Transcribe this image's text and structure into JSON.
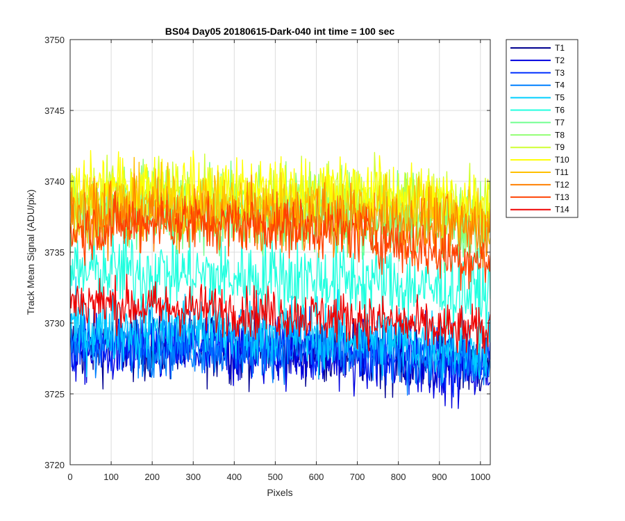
{
  "chart_data": {
    "type": "line",
    "title": "BS04 Day05 20180615-Dark-040 int time = 100 sec",
    "xlabel": "Pixels",
    "ylabel": "Track Mean Signal (ADU/pix)",
    "xlim": [
      0,
      1024
    ],
    "ylim": [
      3720,
      3750
    ],
    "xticks": [
      0,
      100,
      200,
      300,
      400,
      500,
      600,
      700,
      800,
      900,
      1000
    ],
    "yticks": [
      3720,
      3725,
      3730,
      3735,
      3740,
      3745,
      3750
    ],
    "grid": true,
    "legend_position": "outside-top-right",
    "noise_note": "Each track is a noisy per-pixel trace; values below give the approximate mean level and the typical noise spread (std) read from the plot.",
    "series": [
      {
        "name": "T1",
        "color": "#00008f",
        "mean": [
          3728.3,
          3728.5,
          3728.3,
          3728.4,
          3728.2,
          3728.3,
          3728.0,
          3727.9,
          3727.6,
          3727.2,
          3727.0
        ],
        "noise_std": 1.2
      },
      {
        "name": "T2",
        "color": "#0000df",
        "mean": [
          3728.0,
          3728.2,
          3728.0,
          3728.1,
          3727.9,
          3728.0,
          3727.7,
          3727.6,
          3727.3,
          3727.0,
          3726.8
        ],
        "noise_std": 1.2
      },
      {
        "name": "T3",
        "color": "#0030ff",
        "mean": [
          3728.6,
          3728.8,
          3728.6,
          3728.7,
          3728.5,
          3728.6,
          3728.3,
          3728.2,
          3727.9,
          3727.6,
          3727.4
        ],
        "noise_std": 1.1
      },
      {
        "name": "T4",
        "color": "#0080ff",
        "mean": [
          3728.4,
          3728.6,
          3728.4,
          3728.5,
          3728.3,
          3728.4,
          3728.1,
          3728.0,
          3727.7,
          3727.4,
          3727.2
        ],
        "noise_std": 1.1
      },
      {
        "name": "T5",
        "color": "#00cfff",
        "mean": [
          3729.6,
          3729.8,
          3729.6,
          3729.7,
          3729.5,
          3729.6,
          3729.3,
          3729.2,
          3728.9,
          3728.6,
          3728.4
        ],
        "noise_std": 1.3
      },
      {
        "name": "T6",
        "color": "#20ffdf",
        "mean": [
          3733.5,
          3733.7,
          3733.6,
          3733.4,
          3733.2,
          3733.3,
          3733.1,
          3733.0,
          3732.7,
          3732.3,
          3732.0
        ],
        "noise_std": 1.4
      },
      {
        "name": "T7",
        "color": "#70ff8f",
        "mean": [
          3737.6,
          3737.8,
          3737.9,
          3737.7,
          3737.6,
          3737.5,
          3737.6,
          3737.5,
          3737.3,
          3737.0,
          3736.8
        ],
        "noise_std": 1.3
      },
      {
        "name": "T8",
        "color": "#8fff70",
        "mean": [
          3738.3,
          3738.5,
          3738.6,
          3738.4,
          3738.3,
          3738.2,
          3738.3,
          3738.2,
          3738.0,
          3737.7,
          3737.5
        ],
        "noise_std": 1.3
      },
      {
        "name": "T9",
        "color": "#cfff30",
        "mean": [
          3739.0,
          3739.2,
          3739.3,
          3739.1,
          3739.0,
          3738.9,
          3739.0,
          3738.9,
          3738.7,
          3738.4,
          3738.2
        ],
        "noise_std": 1.2
      },
      {
        "name": "T10",
        "color": "#ffff00",
        "mean": [
          3739.3,
          3739.5,
          3739.6,
          3739.4,
          3739.3,
          3739.2,
          3739.3,
          3739.2,
          3739.0,
          3738.7,
          3738.5
        ],
        "noise_std": 1.2
      },
      {
        "name": "T11",
        "color": "#ffbf00",
        "mean": [
          3738.2,
          3738.4,
          3738.5,
          3738.3,
          3738.2,
          3738.1,
          3738.2,
          3738.1,
          3737.9,
          3737.6,
          3737.4
        ],
        "noise_std": 1.2
      },
      {
        "name": "T12",
        "color": "#ff8000",
        "mean": [
          3737.3,
          3737.5,
          3737.6,
          3737.4,
          3737.3,
          3737.2,
          3737.3,
          3737.2,
          3737.0,
          3736.7,
          3736.5
        ],
        "noise_std": 1.2
      },
      {
        "name": "T13",
        "color": "#ff4000",
        "mean": [
          3736.4,
          3736.8,
          3737.2,
          3737.1,
          3737.0,
          3736.9,
          3736.7,
          3736.3,
          3735.6,
          3734.9,
          3734.3
        ],
        "noise_std": 1.0
      },
      {
        "name": "T14",
        "color": "#ef0000",
        "mean": [
          3731.6,
          3731.4,
          3731.1,
          3731.0,
          3730.9,
          3730.7,
          3730.5,
          3730.3,
          3730.0,
          3729.6,
          3729.3
        ],
        "noise_std": 0.9
      }
    ],
    "mean_x": [
      0,
      100,
      200,
      300,
      400,
      500,
      600,
      700,
      800,
      900,
      1024
    ]
  }
}
